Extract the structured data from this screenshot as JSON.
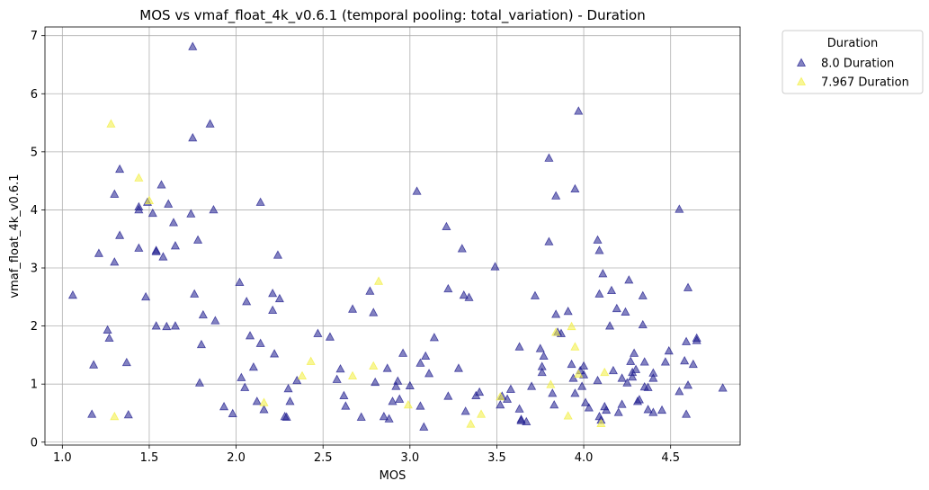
{
  "chart_data": {
    "type": "scatter",
    "title": "MOS vs vmaf_float_4k_v0.6.1 (temporal pooling: total_variation) - Duration",
    "xlabel": "MOS",
    "ylabel": "vmaf_float_4k_v0.6.1",
    "xlim": [
      0.9,
      4.9
    ],
    "ylim": [
      -0.05,
      7.15
    ],
    "xticks": [
      1.0,
      1.5,
      2.0,
      2.5,
      3.0,
      3.5,
      4.0,
      4.5
    ],
    "xtick_labels": [
      "1.0",
      "1.5",
      "2.0",
      "2.5",
      "3.0",
      "3.5",
      "4.0",
      "4.5"
    ],
    "yticks": [
      0,
      1,
      2,
      3,
      4,
      5,
      6,
      7
    ],
    "ytick_labels": [
      "0",
      "1",
      "2",
      "3",
      "4",
      "5",
      "6",
      "7"
    ],
    "grid": true,
    "marker": "triangle",
    "legend": {
      "title": "Duration",
      "placement": "outside-top-right"
    },
    "series": [
      {
        "name": "8.0 Duration",
        "color": "#1d1b8e",
        "points": [
          [
            1.06,
            2.53
          ],
          [
            1.18,
            1.33
          ],
          [
            1.17,
            0.48
          ],
          [
            1.21,
            3.25
          ],
          [
            1.26,
            1.93
          ],
          [
            1.27,
            1.79
          ],
          [
            1.3,
            3.1
          ],
          [
            1.3,
            4.27
          ],
          [
            1.33,
            4.7
          ],
          [
            1.33,
            3.56
          ],
          [
            1.37,
            1.37
          ],
          [
            1.38,
            0.47
          ],
          [
            1.44,
            4.05
          ],
          [
            1.44,
            4.0
          ],
          [
            1.44,
            3.34
          ],
          [
            1.48,
            2.5
          ],
          [
            1.49,
            4.13
          ],
          [
            1.52,
            3.94
          ],
          [
            1.54,
            3.3
          ],
          [
            1.54,
            3.28
          ],
          [
            1.54,
            2.0
          ],
          [
            1.57,
            4.43
          ],
          [
            1.58,
            3.19
          ],
          [
            1.6,
            1.99
          ],
          [
            1.61,
            4.1
          ],
          [
            1.64,
            3.78
          ],
          [
            1.65,
            3.38
          ],
          [
            1.65,
            2.0
          ],
          [
            1.74,
            3.93
          ],
          [
            1.75,
            5.24
          ],
          [
            1.75,
            6.81
          ],
          [
            1.76,
            2.55
          ],
          [
            1.78,
            3.48
          ],
          [
            1.79,
            1.02
          ],
          [
            1.8,
            1.68
          ],
          [
            1.81,
            2.19
          ],
          [
            1.85,
            5.48
          ],
          [
            1.87,
            4.0
          ],
          [
            1.88,
            2.09
          ],
          [
            1.93,
            0.61
          ],
          [
            1.98,
            0.49
          ],
          [
            2.02,
            2.75
          ],
          [
            2.03,
            1.11
          ],
          [
            2.05,
            0.94
          ],
          [
            2.06,
            2.42
          ],
          [
            2.08,
            1.83
          ],
          [
            2.1,
            1.29
          ],
          [
            2.12,
            0.7
          ],
          [
            2.14,
            4.13
          ],
          [
            2.14,
            1.7
          ],
          [
            2.16,
            0.56
          ],
          [
            2.21,
            2.56
          ],
          [
            2.21,
            2.27
          ],
          [
            2.22,
            1.52
          ],
          [
            2.24,
            3.22
          ],
          [
            2.25,
            2.47
          ],
          [
            2.28,
            0.44
          ],
          [
            2.29,
            0.43
          ],
          [
            2.3,
            0.92
          ],
          [
            2.31,
            0.7
          ],
          [
            2.35,
            1.06
          ],
          [
            2.47,
            1.87
          ],
          [
            2.54,
            1.81
          ],
          [
            2.58,
            1.08
          ],
          [
            2.6,
            1.26
          ],
          [
            2.62,
            0.8
          ],
          [
            2.63,
            0.62
          ],
          [
            2.67,
            2.29
          ],
          [
            2.72,
            0.43
          ],
          [
            2.77,
            2.6
          ],
          [
            2.79,
            2.23
          ],
          [
            2.8,
            1.03
          ],
          [
            2.85,
            0.44
          ],
          [
            2.87,
            1.27
          ],
          [
            2.88,
            0.4
          ],
          [
            2.9,
            0.7
          ],
          [
            2.92,
            0.96
          ],
          [
            2.93,
            1.05
          ],
          [
            2.94,
            0.74
          ],
          [
            2.96,
            1.53
          ],
          [
            3.0,
            0.97
          ],
          [
            3.04,
            4.32
          ],
          [
            3.06,
            0.62
          ],
          [
            3.06,
            1.36
          ],
          [
            3.08,
            0.26
          ],
          [
            3.09,
            1.48
          ],
          [
            3.11,
            1.18
          ],
          [
            3.14,
            1.8
          ],
          [
            3.21,
            3.71
          ],
          [
            3.22,
            2.64
          ],
          [
            3.22,
            0.79
          ],
          [
            3.28,
            1.27
          ],
          [
            3.3,
            3.33
          ],
          [
            3.31,
            2.53
          ],
          [
            3.32,
            0.53
          ],
          [
            3.34,
            2.49
          ],
          [
            3.38,
            0.8
          ],
          [
            3.4,
            0.86
          ],
          [
            3.49,
            3.02
          ],
          [
            3.52,
            0.64
          ],
          [
            3.53,
            0.79
          ],
          [
            3.56,
            0.74
          ],
          [
            3.58,
            0.91
          ],
          [
            3.63,
            1.64
          ],
          [
            3.63,
            0.57
          ],
          [
            3.64,
            0.39
          ],
          [
            3.64,
            0.37
          ],
          [
            3.67,
            0.35
          ],
          [
            3.7,
            0.96
          ],
          [
            3.72,
            2.52
          ],
          [
            3.75,
            1.61
          ],
          [
            3.76,
            1.3
          ],
          [
            3.76,
            1.2
          ],
          [
            3.77,
            1.48
          ],
          [
            3.8,
            4.89
          ],
          [
            3.8,
            3.45
          ],
          [
            3.82,
            0.84
          ],
          [
            3.83,
            0.64
          ],
          [
            3.84,
            4.24
          ],
          [
            3.84,
            2.2
          ],
          [
            3.85,
            1.89
          ],
          [
            3.87,
            1.87
          ],
          [
            3.91,
            2.25
          ],
          [
            3.93,
            1.34
          ],
          [
            3.94,
            1.1
          ],
          [
            3.95,
            4.36
          ],
          [
            3.95,
            0.84
          ],
          [
            3.97,
            5.7
          ],
          [
            3.98,
            1.23
          ],
          [
            3.99,
            0.96
          ],
          [
            4.0,
            1.31
          ],
          [
            4.0,
            1.16
          ],
          [
            4.01,
            0.68
          ],
          [
            4.03,
            0.59
          ],
          [
            4.08,
            3.48
          ],
          [
            4.08,
            1.06
          ],
          [
            4.09,
            3.3
          ],
          [
            4.09,
            2.55
          ],
          [
            4.09,
            0.44
          ],
          [
            4.1,
            0.38
          ],
          [
            4.11,
            2.9
          ],
          [
            4.12,
            0.61
          ],
          [
            4.13,
            0.55
          ],
          [
            4.15,
            2.0
          ],
          [
            4.16,
            2.61
          ],
          [
            4.17,
            1.23
          ],
          [
            4.19,
            2.3
          ],
          [
            4.2,
            0.51
          ],
          [
            4.22,
            1.1
          ],
          [
            4.22,
            0.65
          ],
          [
            4.24,
            2.24
          ],
          [
            4.25,
            1.02
          ],
          [
            4.26,
            2.79
          ],
          [
            4.27,
            1.39
          ],
          [
            4.28,
            1.12
          ],
          [
            4.28,
            1.2
          ],
          [
            4.29,
            1.53
          ],
          [
            4.3,
            1.25
          ],
          [
            4.31,
            0.7
          ],
          [
            4.32,
            0.73
          ],
          [
            4.34,
            2.52
          ],
          [
            4.34,
            2.02
          ],
          [
            4.35,
            1.38
          ],
          [
            4.35,
            0.95
          ],
          [
            4.37,
            0.56
          ],
          [
            4.37,
            0.94
          ],
          [
            4.4,
            1.19
          ],
          [
            4.4,
            1.1
          ],
          [
            4.4,
            0.51
          ],
          [
            4.45,
            0.55
          ],
          [
            4.47,
            1.38
          ],
          [
            4.49,
            1.57
          ],
          [
            4.55,
            4.01
          ],
          [
            4.55,
            0.87
          ],
          [
            4.58,
            1.4
          ],
          [
            4.59,
            1.73
          ],
          [
            4.59,
            0.48
          ],
          [
            4.6,
            2.66
          ],
          [
            4.6,
            0.98
          ],
          [
            4.63,
            1.34
          ],
          [
            4.65,
            1.79
          ],
          [
            4.65,
            1.75
          ],
          [
            4.8,
            0.93
          ]
        ]
      },
      {
        "name": "7.967 Duration",
        "color": "#f2ee3f",
        "points": [
          [
            1.28,
            5.48
          ],
          [
            1.3,
            0.44
          ],
          [
            1.44,
            4.55
          ],
          [
            1.5,
            4.16
          ],
          [
            2.16,
            0.68
          ],
          [
            2.38,
            1.14
          ],
          [
            2.43,
            1.39
          ],
          [
            2.67,
            1.14
          ],
          [
            2.79,
            1.31
          ],
          [
            2.82,
            2.77
          ],
          [
            2.99,
            0.64
          ],
          [
            3.35,
            0.31
          ],
          [
            3.41,
            0.48
          ],
          [
            3.52,
            0.78
          ],
          [
            3.81,
            0.99
          ],
          [
            3.84,
            1.89
          ],
          [
            3.91,
            0.45
          ],
          [
            3.93,
            1.99
          ],
          [
            3.95,
            1.64
          ],
          [
            3.97,
            1.17
          ],
          [
            4.1,
            0.32
          ],
          [
            4.12,
            1.2
          ]
        ]
      }
    ]
  }
}
